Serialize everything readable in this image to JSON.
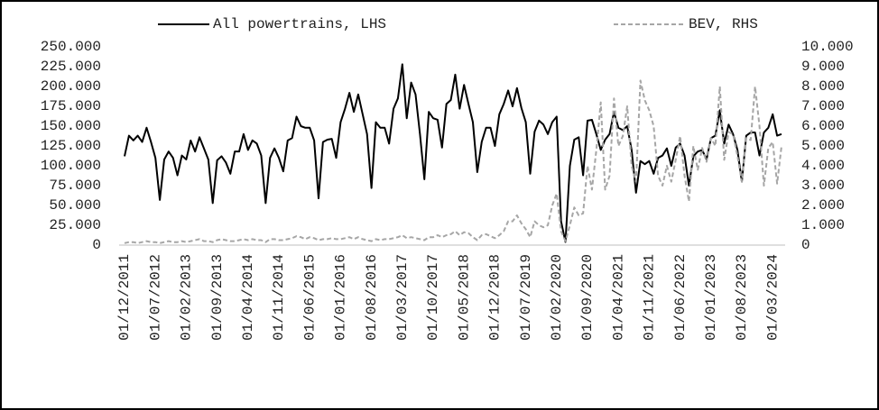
{
  "chart_data": {
    "type": "line",
    "categories": [
      "01/12/2011",
      null,
      null,
      null,
      null,
      null,
      null,
      "01/07/2012",
      null,
      null,
      null,
      null,
      null,
      null,
      "01/02/2013",
      null,
      null,
      null,
      null,
      null,
      null,
      "01/09/2013",
      null,
      null,
      null,
      null,
      null,
      null,
      "01/04/2014",
      null,
      null,
      null,
      null,
      null,
      null,
      "01/11/2014",
      null,
      null,
      null,
      null,
      null,
      null,
      "01/06/2015",
      null,
      null,
      null,
      null,
      null,
      null,
      "01/01/2016",
      null,
      null,
      null,
      null,
      null,
      null,
      "01/08/2016",
      null,
      null,
      null,
      null,
      null,
      null,
      "01/03/2017",
      null,
      null,
      null,
      null,
      null,
      null,
      "01/10/2017",
      null,
      null,
      null,
      null,
      null,
      null,
      "01/05/2018",
      null,
      null,
      null,
      null,
      null,
      null,
      "01/12/2018",
      null,
      null,
      null,
      null,
      null,
      null,
      "01/07/2019",
      null,
      null,
      null,
      null,
      null,
      null,
      "01/02/2020",
      null,
      null,
      null,
      null,
      null,
      null,
      "01/09/2020",
      null,
      null,
      null,
      null,
      null,
      null,
      "01/04/2021",
      null,
      null,
      null,
      null,
      null,
      null,
      "01/11/2021",
      null,
      null,
      null,
      null,
      null,
      null,
      "01/06/2022",
      null,
      null,
      null,
      null,
      null,
      null,
      "01/01/2023",
      null,
      null,
      null,
      null,
      null,
      null,
      "01/08/2023",
      null,
      null,
      null,
      null,
      null,
      null,
      "01/03/2024",
      null,
      null
    ],
    "series": [
      {
        "name": "All powertrains, LHS",
        "color": "#000000",
        "axis": "y",
        "values": [
          112000,
          138000,
          132000,
          138000,
          130000,
          148000,
          130000,
          110000,
          57000,
          108000,
          118000,
          110000,
          88000,
          113000,
          108000,
          132000,
          118000,
          136000,
          122000,
          108000,
          53000,
          107000,
          112000,
          104000,
          90000,
          118000,
          118000,
          140000,
          120000,
          132000,
          128000,
          113000,
          53000,
          110000,
          122000,
          110000,
          93000,
          132000,
          135000,
          162000,
          150000,
          148000,
          148000,
          132000,
          59000,
          130000,
          133000,
          134000,
          110000,
          155000,
          172000,
          192000,
          168000,
          190000,
          165000,
          140000,
          72000,
          155000,
          148000,
          148000,
          128000,
          172000,
          185000,
          228000,
          160000,
          205000,
          190000,
          140000,
          83000,
          168000,
          160000,
          158000,
          123000,
          178000,
          183000,
          215000,
          172000,
          202000,
          178000,
          155000,
          92000,
          130000,
          148000,
          148000,
          125000,
          165000,
          178000,
          195000,
          175000,
          198000,
          173000,
          155000,
          90000,
          143000,
          157000,
          152000,
          140000,
          155000,
          162000,
          30000,
          4000,
          100000,
          133000,
          136000,
          88000,
          157000,
          158000,
          140000,
          120000,
          133000,
          140000,
          168000,
          148000,
          145000,
          150000,
          120000,
          66000,
          106000,
          102000,
          106000,
          90000,
          110000,
          113000,
          122000,
          100000,
          123000,
          128000,
          113000,
          75000,
          112000,
          118000,
          120000,
          108000,
          135000,
          138000,
          170000,
          128000,
          152000,
          140000,
          120000,
          80000,
          138000,
          142000,
          142000,
          113000,
          142000,
          148000,
          165000,
          138000,
          140000
        ]
      },
      {
        "name": "BEV, RHS",
        "color": "#a6a6a6",
        "axis": "y2",
        "dashed": true,
        "values": [
          100,
          150,
          150,
          100,
          150,
          200,
          150,
          150,
          100,
          150,
          200,
          150,
          150,
          200,
          150,
          200,
          250,
          300,
          200,
          200,
          150,
          250,
          300,
          250,
          200,
          200,
          250,
          300,
          250,
          300,
          250,
          250,
          150,
          300,
          300,
          250,
          250,
          300,
          350,
          450,
          400,
          300,
          400,
          350,
          250,
          300,
          300,
          350,
          300,
          300,
          350,
          400,
          300,
          400,
          300,
          250,
          200,
          300,
          250,
          300,
          300,
          350,
          400,
          500,
          350,
          400,
          350,
          300,
          250,
          400,
          400,
          500,
          400,
          500,
          550,
          700,
          500,
          650,
          600,
          400,
          250,
          500,
          550,
          450,
          350,
          500,
          700,
          1200,
          1200,
          1500,
          1100,
          800,
          400,
          1200,
          1000,
          900,
          1000,
          2000,
          2600,
          700,
          200,
          1000,
          1900,
          1500,
          1600,
          4000,
          2800,
          4800,
          7200,
          2800,
          3500,
          7400,
          5000,
          5500,
          7000,
          4000,
          3200,
          8300,
          7300,
          6800,
          6000,
          3500,
          3000,
          4000,
          3200,
          4300,
          5500,
          3500,
          2200,
          5000,
          3800,
          4900,
          4200,
          5400,
          5000,
          8000,
          4300,
          5700,
          5600,
          4500,
          3200,
          5400,
          5300,
          8000,
          6000,
          3000,
          4900,
          5200,
          3100,
          5000
        ]
      }
    ],
    "ylim": [
      0,
      250000
    ],
    "yticks": [
      0,
      {
        "value": 25000,
        "label": "25.000"
      },
      {
        "value": 50000,
        "label": "50.000"
      },
      {
        "value": 75000,
        "label": "75.000"
      },
      {
        "value": 100000,
        "label": "100.000"
      },
      {
        "value": 125000,
        "label": "125.000"
      },
      {
        "value": 150000,
        "label": "150.000"
      },
      {
        "value": 175000,
        "label": "175.000"
      },
      {
        "value": 200000,
        "label": "200.000"
      },
      {
        "value": 225000,
        "label": "225.000"
      },
      {
        "value": 250000,
        "label": "250.000"
      }
    ],
    "y2lim": [
      0,
      10000
    ],
    "y2ticks": [
      0,
      {
        "value": 1000,
        "label": "1.000"
      },
      {
        "value": 2000,
        "label": "2.000"
      },
      {
        "value": 3000,
        "label": "3.000"
      },
      {
        "value": 4000,
        "label": "4.000"
      },
      {
        "value": 5000,
        "label": "5.000"
      },
      {
        "value": 6000,
        "label": "6.000"
      },
      {
        "value": 7000,
        "label": "7.000"
      },
      {
        "value": 8000,
        "label": "8.000"
      },
      {
        "value": 9000,
        "label": "9.000"
      },
      {
        "value": 10000,
        "label": "10.000"
      }
    ],
    "grid": false,
    "legend": "top"
  }
}
